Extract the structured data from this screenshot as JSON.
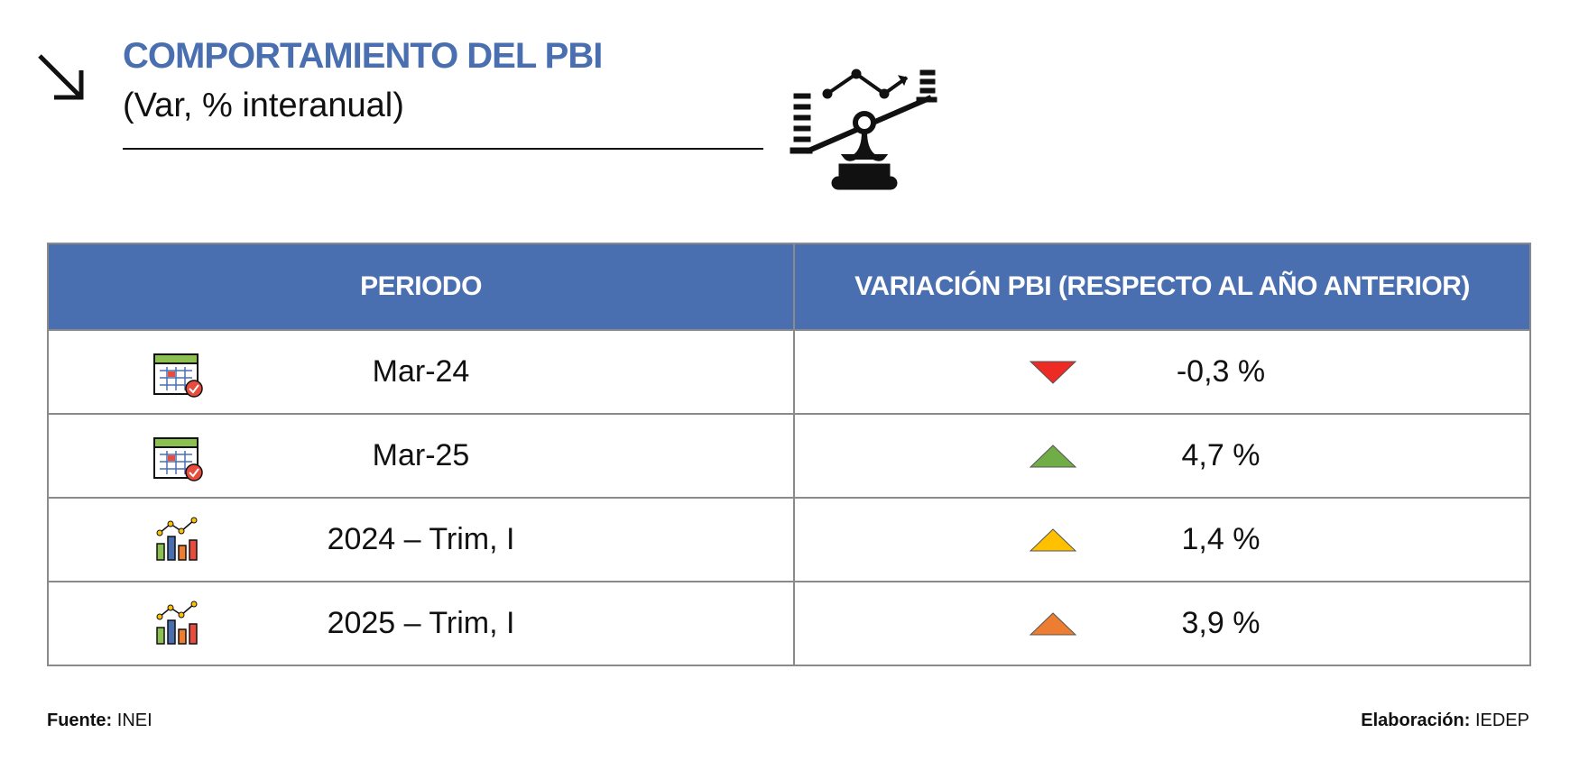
{
  "header": {
    "title": "COMPORTAMIENTO DEL PBI",
    "subtitle": "(Var,  % interanual)"
  },
  "table": {
    "columns": [
      "PERIODO",
      "VARIACIÓN PBI (RESPECTO AL AÑO ANTERIOR)"
    ],
    "rows": [
      [
        "Mar-24",
        "-0,3 %"
      ],
      [
        "Mar-25",
        "4,7 %"
      ],
      [
        "2024 – Trim, I",
        "1,4 %"
      ],
      [
        "2025 – Trim, I",
        "3,9 %"
      ]
    ]
  },
  "footer": {
    "source_label": "Fuente:",
    "source": "INEI",
    "credit_label": "Elaboración:",
    "credit": "IEDEP"
  }
}
